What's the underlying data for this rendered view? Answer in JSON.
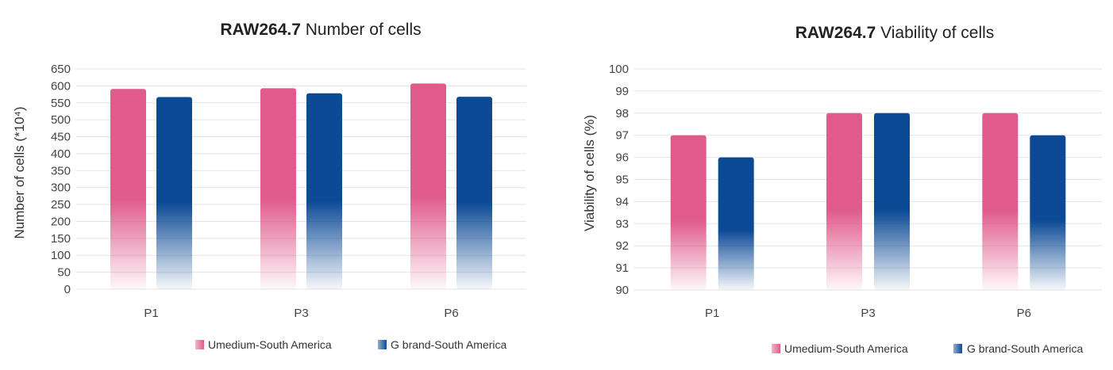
{
  "chart_data": [
    {
      "type": "bar",
      "title_bold": "RAW264.7",
      "title_rest": "Number of cells",
      "ylabel": "Number of cells (*10⁴)",
      "categories": [
        "P1",
        "P3",
        "P6"
      ],
      "ylim": [
        0,
        650
      ],
      "ytick_step": 50,
      "yticks": [
        "0",
        "50",
        "100",
        "150",
        "200",
        "250",
        "300",
        "350",
        "400",
        "450",
        "500",
        "550",
        "600",
        "650"
      ],
      "grid": true,
      "legend_position": "bottom-right",
      "series": [
        {
          "name": "Umedium-South America",
          "color": "#e05b8c",
          "values": [
            591,
            593,
            607
          ]
        },
        {
          "name": "G brand-South America",
          "color": "#0d4a96",
          "values": [
            567,
            578,
            568
          ]
        }
      ]
    },
    {
      "type": "bar",
      "title_bold": "RAW264.7",
      "title_rest": "Viability of cells",
      "ylabel": "Viability of cells (%)",
      "categories": [
        "P1",
        "P3",
        "P6"
      ],
      "ylim": [
        90,
        100
      ],
      "ytick_step": 1,
      "yticks": [
        "90",
        "91",
        "92",
        "93",
        "94",
        "95",
        "96",
        "97",
        "98",
        "99",
        "100"
      ],
      "grid": true,
      "legend_position": "bottom-right",
      "series": [
        {
          "name": "Umedium-South America",
          "color": "#e05b8c",
          "values": [
            97,
            98,
            98
          ]
        },
        {
          "name": "G brand-South America",
          "color": "#0d4a96",
          "values": [
            96,
            98,
            97
          ]
        }
      ]
    }
  ]
}
